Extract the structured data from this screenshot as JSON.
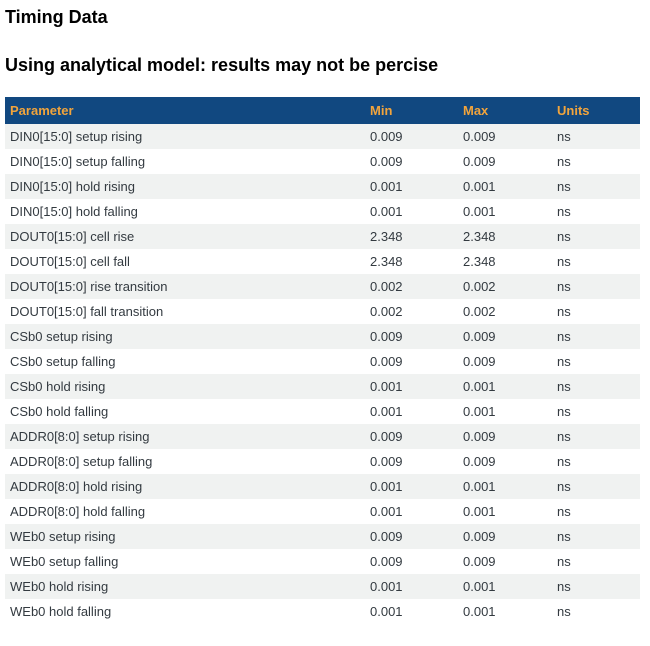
{
  "page": {
    "title": "Timing Data",
    "subtitle": "Using analytical model: results may not be percise"
  },
  "table": {
    "columns": [
      "Parameter",
      "Min",
      "Max",
      "Units"
    ],
    "rows": [
      {
        "parameter": "DIN0[15:0] setup rising",
        "min": "0.009",
        "max": "0.009",
        "units": "ns"
      },
      {
        "parameter": "DIN0[15:0] setup falling",
        "min": "0.009",
        "max": "0.009",
        "units": "ns"
      },
      {
        "parameter": "DIN0[15:0] hold rising",
        "min": "0.001",
        "max": "0.001",
        "units": "ns"
      },
      {
        "parameter": "DIN0[15:0] hold falling",
        "min": "0.001",
        "max": "0.001",
        "units": "ns"
      },
      {
        "parameter": "DOUT0[15:0] cell rise",
        "min": "2.348",
        "max": "2.348",
        "units": "ns"
      },
      {
        "parameter": "DOUT0[15:0] cell fall",
        "min": "2.348",
        "max": "2.348",
        "units": "ns"
      },
      {
        "parameter": "DOUT0[15:0] rise transition",
        "min": "0.002",
        "max": "0.002",
        "units": "ns"
      },
      {
        "parameter": "DOUT0[15:0] fall transition",
        "min": "0.002",
        "max": "0.002",
        "units": "ns"
      },
      {
        "parameter": "CSb0 setup rising",
        "min": "0.009",
        "max": "0.009",
        "units": "ns"
      },
      {
        "parameter": "CSb0 setup falling",
        "min": "0.009",
        "max": "0.009",
        "units": "ns"
      },
      {
        "parameter": "CSb0 hold rising",
        "min": "0.001",
        "max": "0.001",
        "units": "ns"
      },
      {
        "parameter": "CSb0 hold falling",
        "min": "0.001",
        "max": "0.001",
        "units": "ns"
      },
      {
        "parameter": "ADDR0[8:0] setup rising",
        "min": "0.009",
        "max": "0.009",
        "units": "ns"
      },
      {
        "parameter": "ADDR0[8:0] setup falling",
        "min": "0.009",
        "max": "0.009",
        "units": "ns"
      },
      {
        "parameter": "ADDR0[8:0] hold rising",
        "min": "0.001",
        "max": "0.001",
        "units": "ns"
      },
      {
        "parameter": "ADDR0[8:0] hold falling",
        "min": "0.001",
        "max": "0.001",
        "units": "ns"
      },
      {
        "parameter": "WEb0 setup rising",
        "min": "0.009",
        "max": "0.009",
        "units": "ns"
      },
      {
        "parameter": "WEb0 setup falling",
        "min": "0.009",
        "max": "0.009",
        "units": "ns"
      },
      {
        "parameter": "WEb0 hold rising",
        "min": "0.001",
        "max": "0.001",
        "units": "ns"
      },
      {
        "parameter": "WEb0 hold falling",
        "min": "0.001",
        "max": "0.001",
        "units": "ns"
      }
    ]
  },
  "colors": {
    "header_bg": "#114880",
    "header_text": "#f2a43c",
    "row_alt_bg": "#f0f2f1",
    "row_text": "#333a40",
    "title_text": "#000000"
  }
}
